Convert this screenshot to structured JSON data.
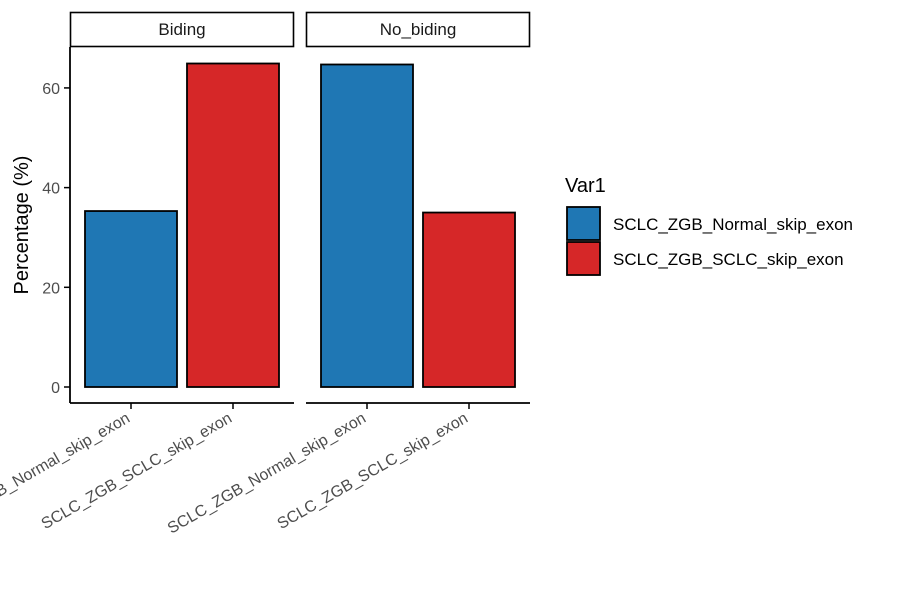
{
  "chart_data": {
    "type": "bar",
    "title": "",
    "xlabel": "",
    "ylabel": "Percentage (%)",
    "ylim": [
      0,
      67
    ],
    "yticks": [
      0,
      20,
      40,
      60
    ],
    "categories": [
      "SCLC_ZGB_Normal_skip_exon",
      "SCLC_ZGB_SCLC_skip_exon"
    ],
    "facets": [
      {
        "label": "Biding",
        "values": [
          35.3,
          64.9
        ]
      },
      {
        "label": "No_biding",
        "values": [
          64.7,
          35.0
        ]
      }
    ],
    "legend": {
      "title": "Var1",
      "position": "right",
      "entries": [
        {
          "label": "SCLC_ZGB_Normal_skip_exon",
          "color": "#1f77b4"
        },
        {
          "label": "SCLC_ZGB_SCLC_skip_exon",
          "color": "#d62728"
        }
      ]
    },
    "grid": false
  }
}
